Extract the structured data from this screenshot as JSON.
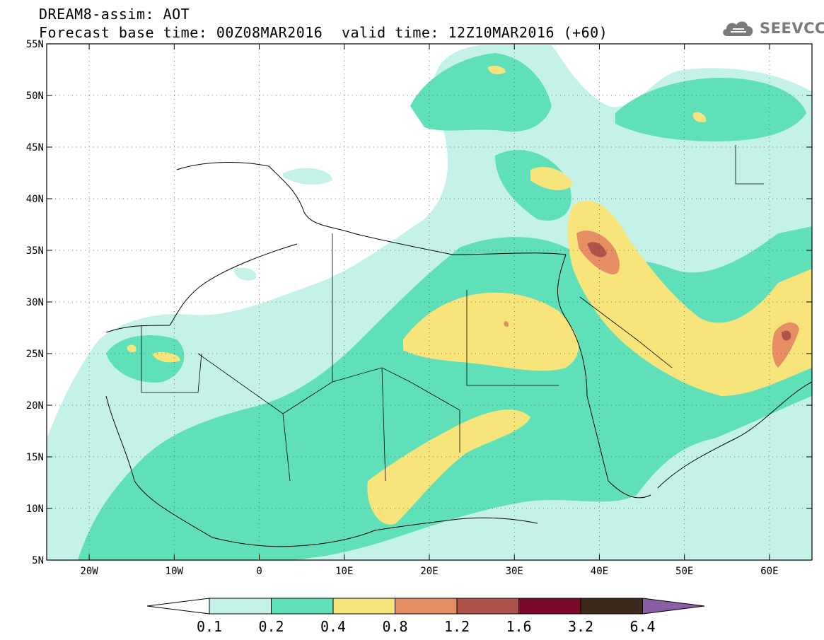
{
  "header": {
    "line1": "DREAM8-assim: AOT",
    "line2": "Forecast base time: 00Z08MAR2016",
    "valid": "valid time: 12Z10MAR2016 (+60)"
  },
  "brand": {
    "name": "SEEVCCC",
    "icon": "cloud-logo-icon"
  },
  "map": {
    "lon_range": [
      -25,
      65
    ],
    "lat_range": [
      5,
      55
    ],
    "lon_labels": [
      {
        "lon": -20,
        "text": "20W"
      },
      {
        "lon": -10,
        "text": "10W"
      },
      {
        "lon": 0,
        "text": "0"
      },
      {
        "lon": 10,
        "text": "10E"
      },
      {
        "lon": 20,
        "text": "20E"
      },
      {
        "lon": 30,
        "text": "30E"
      },
      {
        "lon": 40,
        "text": "40E"
      },
      {
        "lon": 50,
        "text": "50E"
      },
      {
        "lon": 60,
        "text": "60E"
      }
    ],
    "lat_labels": [
      {
        "lat": 55,
        "text": "55N"
      },
      {
        "lat": 50,
        "text": "50N"
      },
      {
        "lat": 45,
        "text": "45N"
      },
      {
        "lat": 40,
        "text": "40N"
      },
      {
        "lat": 35,
        "text": "35N"
      },
      {
        "lat": 30,
        "text": "30N"
      },
      {
        "lat": 25,
        "text": "25N"
      },
      {
        "lat": 20,
        "text": "20N"
      },
      {
        "lat": 15,
        "text": "15N"
      },
      {
        "lat": 10,
        "text": "10N"
      },
      {
        "lat": 5,
        "text": "5N"
      }
    ],
    "grid": "dotted"
  },
  "colorbar": {
    "colors": [
      "#ffffff",
      "#c5f2e8",
      "#5fe0b8",
      "#f7e57b",
      "#e88e64",
      "#b0524a",
      "#7d0a2a",
      "#3d2a1a",
      "#8a5fa3"
    ],
    "labels": [
      "0.1",
      "0.2",
      "0.4",
      "0.8",
      "1.2",
      "1.6",
      "3.2",
      "6.4"
    ]
  }
}
